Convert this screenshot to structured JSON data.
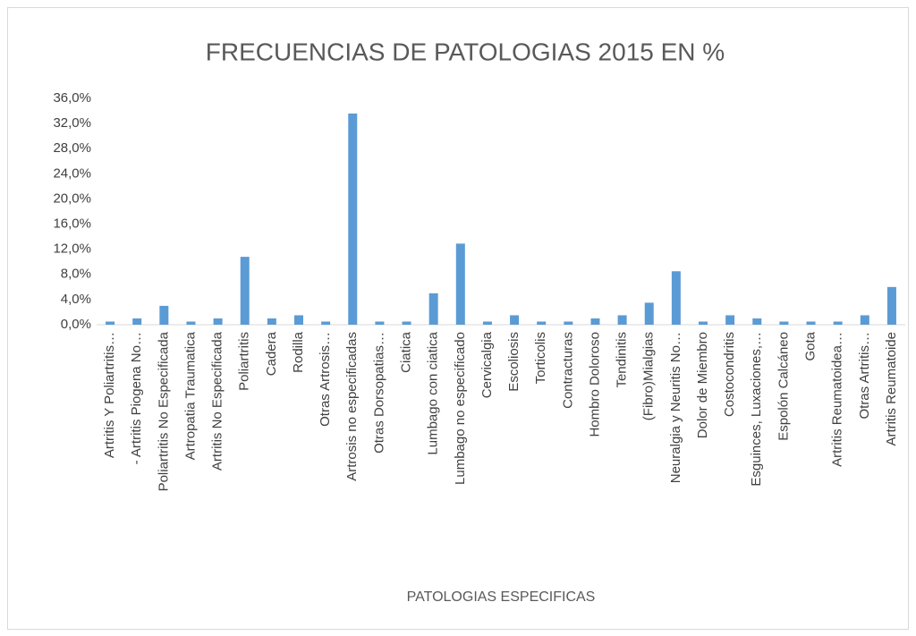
{
  "chart_data": {
    "type": "bar",
    "title": "FRECUENCIAS DE PATOLOGIAS 2015 EN %",
    "x_label": "PATOLOGIAS ESPECIFICAS",
    "categories": [
      "Artritis Y Poliartritis…",
      "- Artritis Piogena No…",
      "Poliartritis No Especificada",
      "Artropatia Traumatica",
      "Artritis No Especificada",
      "Poliartritis",
      "Cadera",
      "Rodilla",
      "Otras Artrosis…",
      "Artrosis no especificadas",
      "Otras Dorsopatias…",
      "Ciatica",
      "Lumbago con ciatica",
      "Lumbago no especificado",
      "Cervicalgia",
      "Escoliosis",
      "Torticolis",
      "Contracturas",
      "Hombro Doloroso",
      "Tendinitis",
      "(Fibro)Mialgias",
      "Neuralgia y  Neuritis No…",
      "Dolor de Miembro",
      "Costocondritis",
      "Esguinces, Luxaciones,…",
      "Espolón Calcáneo",
      "Gota",
      "Artritis Reumatoidea…",
      "Otras Artritis…",
      "Artritis Reumatoide"
    ],
    "values": [
      0.5,
      1.0,
      3.0,
      0.5,
      1.0,
      10.8,
      1.0,
      1.5,
      0.5,
      33.6,
      0.5,
      0.5,
      5.0,
      12.9,
      0.5,
      1.5,
      0.5,
      0.5,
      1.0,
      1.5,
      3.5,
      8.5,
      0.5,
      1.5,
      1.0,
      0.5,
      0.5,
      0.5,
      1.5,
      6.0
    ],
    "color": "#5b9bd5",
    "ylim": [
      0,
      36
    ],
    "yticks": [
      {
        "value": 0,
        "label": "0,0%"
      },
      {
        "value": 4,
        "label": "4,0%"
      },
      {
        "value": 8,
        "label": "8,0%"
      },
      {
        "value": 12,
        "label": "12,0%"
      },
      {
        "value": 16,
        "label": "16,0%"
      },
      {
        "value": 20,
        "label": "20,0%"
      },
      {
        "value": 24,
        "label": "24,0%"
      },
      {
        "value": 28,
        "label": "28,0%"
      },
      {
        "value": 32,
        "label": "32,0%"
      },
      {
        "value": 36,
        "label": "36,0%"
      }
    ],
    "grid": false
  }
}
